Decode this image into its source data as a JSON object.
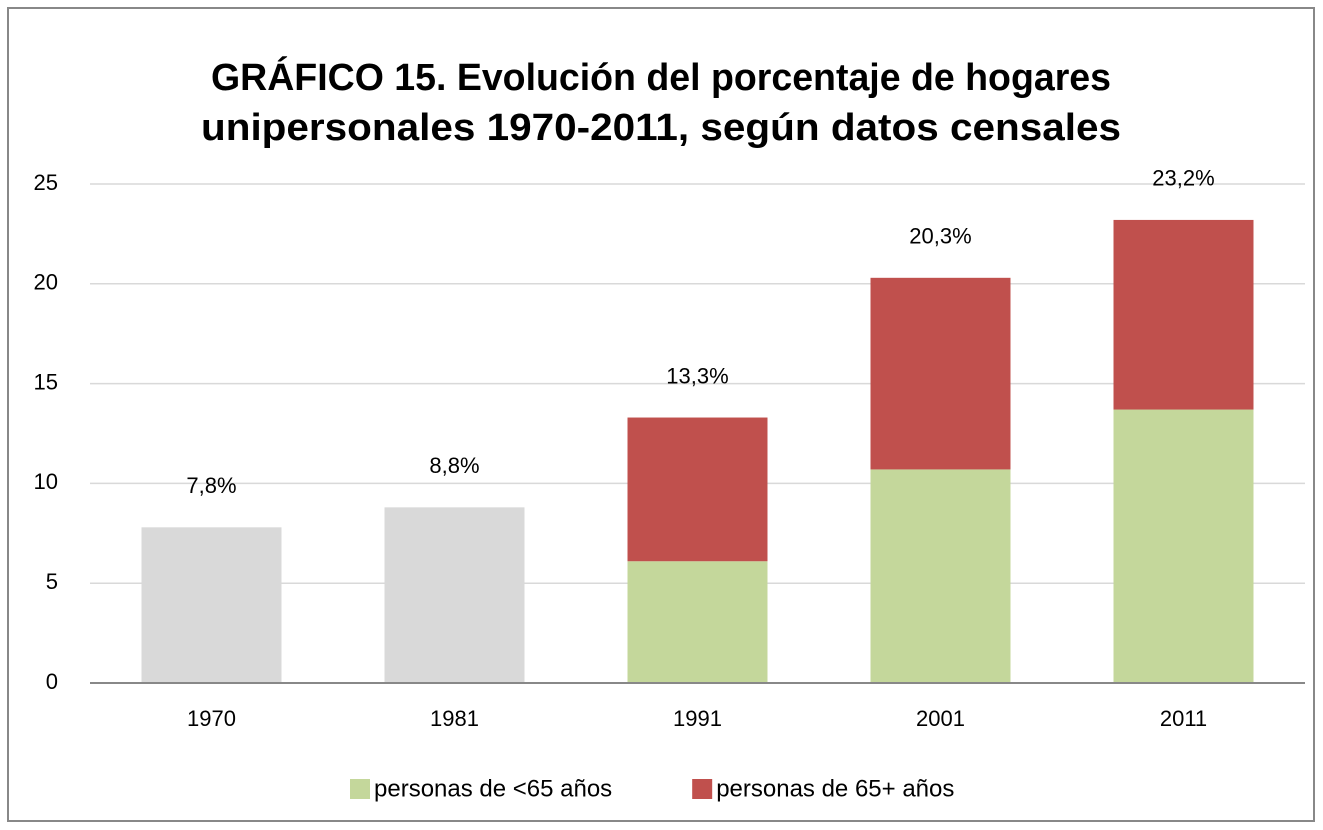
{
  "chart_data": {
    "type": "stacked_bar",
    "title": [
      "GRÁFICO 15. Evolución del porcentaje de hogares",
      "unipersonales 1970-2011, según datos censales"
    ],
    "categories": [
      "1970",
      "1981",
      "1991",
      "2001",
      "2011"
    ],
    "series": [
      {
        "color": "#d9d9d9",
        "values": [
          7.8,
          8.8,
          null,
          null,
          null
        ]
      },
      {
        "name": "personas de <65 años",
        "color": "#c4d79b",
        "values": [
          null,
          null,
          6.1,
          10.7,
          13.7
        ]
      },
      {
        "name": "personas de 65+ años",
        "color": "#c0504d",
        "values": [
          null,
          null,
          7.2,
          9.6,
          9.5
        ]
      }
    ],
    "totals": {
      "values": [
        7.8,
        8.8,
        13.3,
        20.3,
        23.2
      ],
      "value_labels": [
        "7,8%",
        "8,8%",
        "13,3%",
        "20,3%",
        "23,2%"
      ]
    },
    "ylim": [
      0,
      25
    ],
    "yticks": [
      0,
      5,
      10,
      15,
      20,
      25
    ],
    "grid": true,
    "legend": "bottom"
  }
}
